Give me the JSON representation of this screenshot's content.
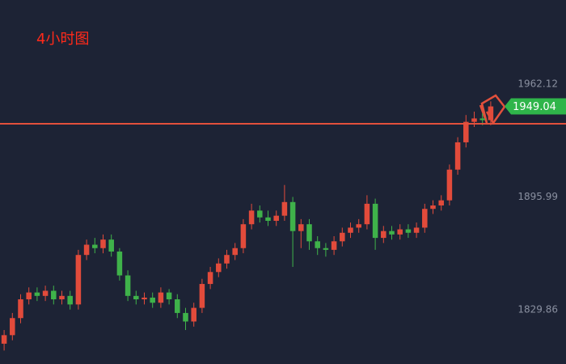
{
  "chart_data": {
    "type": "candlestick",
    "title": "4小时图",
    "ylim": [
      1798.1,
      2011.4
    ],
    "yticks": [
      1829.86,
      1895.99,
      1962.12
    ],
    "up_color": "#e24b3b",
    "down_color": "#3fb24a",
    "hline": 1938.9,
    "hline_color": "#e2503c",
    "open": [
      1810,
      1815,
      1825,
      1836,
      1840,
      1838,
      1841,
      1836,
      1838,
      1833,
      1862,
      1868,
      1866,
      1871,
      1864,
      1850,
      1838,
      1836,
      1837,
      1834,
      1840,
      1836,
      1828,
      1823,
      1831,
      1845,
      1852,
      1857,
      1862,
      1866,
      1880,
      1888,
      1884,
      1882,
      1885,
      1893,
      1876,
      1880,
      1870,
      1866,
      1865,
      1870,
      1875,
      1878,
      1880,
      1892,
      1872,
      1876,
      1874,
      1877,
      1875,
      1878,
      1889,
      1891,
      1894,
      1912,
      1928,
      1940,
      1942,
      1941
    ],
    "high": [
      1818,
      1828,
      1839,
      1843,
      1843,
      1844,
      1844,
      1841,
      1841,
      1865,
      1871,
      1872,
      1874,
      1874,
      1866,
      1853,
      1841,
      1840,
      1840,
      1843,
      1842,
      1839,
      1831,
      1834,
      1848,
      1855,
      1860,
      1865,
      1869,
      1883,
      1892,
      1891,
      1888,
      1888,
      1903,
      1896,
      1883,
      1883,
      1873,
      1869,
      1873,
      1878,
      1881,
      1883,
      1897,
      1895,
      1879,
      1879,
      1880,
      1880,
      1881,
      1892,
      1894,
      1897,
      1915,
      1931,
      1944,
      1946,
      1945,
      1952
    ],
    "low": [
      1806,
      1812,
      1822,
      1833,
      1835,
      1835,
      1833,
      1833,
      1830,
      1830,
      1859,
      1863,
      1863,
      1861,
      1847,
      1835,
      1833,
      1833,
      1831,
      1831,
      1833,
      1825,
      1818,
      1820,
      1828,
      1842,
      1849,
      1854,
      1859,
      1863,
      1877,
      1881,
      1879,
      1879,
      1882,
      1855,
      1866,
      1865,
      1862,
      1861,
      1862,
      1867,
      1872,
      1875,
      1877,
      1865,
      1869,
      1871,
      1871,
      1872,
      1872,
      1875,
      1886,
      1888,
      1891,
      1909,
      1925,
      1937,
      1938,
      1938
    ],
    "close": [
      1815,
      1825,
      1836,
      1840,
      1838,
      1841,
      1836,
      1838,
      1833,
      1862,
      1868,
      1866,
      1871,
      1864,
      1850,
      1838,
      1836,
      1837,
      1834,
      1840,
      1836,
      1828,
      1823,
      1831,
      1845,
      1852,
      1857,
      1862,
      1866,
      1880,
      1888,
      1884,
      1882,
      1885,
      1893,
      1876,
      1880,
      1870,
      1866,
      1865,
      1870,
      1875,
      1878,
      1880,
      1892,
      1872,
      1876,
      1874,
      1877,
      1875,
      1878,
      1889,
      1891,
      1894,
      1912,
      1928,
      1940,
      1942,
      1941,
      1949.04
    ],
    "tag_color": "#2fb54a"
  }
}
